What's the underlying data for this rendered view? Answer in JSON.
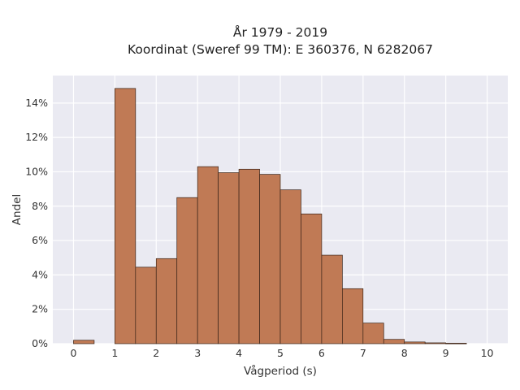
{
  "chart_data": {
    "type": "bar",
    "title_line1": "År 1979 - 2019",
    "title_line2": "Koordinat (Sweref 99 TM): E 360376, N 6282067",
    "xlabel": "Vågperiod (s)",
    "ylabel": "Andel",
    "bin_width": 0.5,
    "bin_starts": [
      0,
      0.5,
      1,
      1.5,
      2,
      2.5,
      3,
      3.5,
      4,
      4.5,
      5,
      5.5,
      6,
      6.5,
      7,
      7.5,
      8,
      8.5,
      9,
      9.5
    ],
    "values": [
      0.2,
      0,
      14.85,
      4.45,
      4.95,
      8.5,
      10.3,
      9.95,
      10.15,
      9.85,
      8.95,
      7.55,
      5.15,
      3.2,
      1.2,
      0.25,
      0.1,
      0.05,
      0.03,
      0
    ],
    "xlim": [
      -0.5,
      10.5
    ],
    "ylim": [
      0,
      15.6
    ],
    "x_ticks": [
      "0",
      "1",
      "2",
      "3",
      "4",
      "5",
      "6",
      "7",
      "8",
      "9",
      "10"
    ],
    "y_ticks": [
      "0%",
      "2%",
      "4%",
      "6%",
      "8%",
      "10%",
      "12%",
      "14%"
    ],
    "grid": true,
    "bar_color": "#c07a55",
    "bar_edge_color": "#3a2418",
    "plot_background": "#eaeaf2",
    "grid_color": "#ffffff"
  }
}
